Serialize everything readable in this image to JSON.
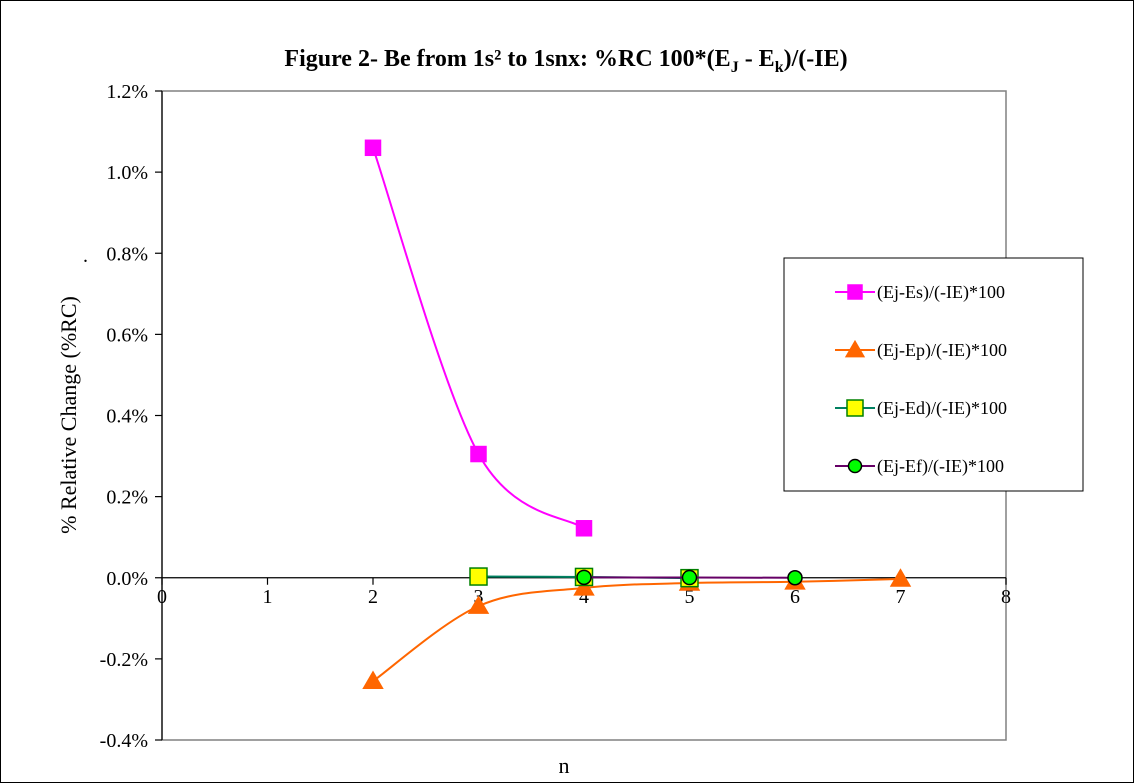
{
  "chart_data": {
    "type": "line",
    "title": "Figure 2- Be from 1s² to 1snx: %RC   100*(E",
    "title_sub_j": "J",
    "title_mid": " - E",
    "title_sub_k": "k",
    "title_end": ")/(-IE)",
    "xlabel": "n",
    "ylabel": "% Relative Change (%RC)",
    "ylabel_prefix": ".",
    "xlim": [
      0,
      8
    ],
    "ylim": [
      -0.004,
      0.012
    ],
    "x_ticks": [
      0,
      1,
      2,
      3,
      4,
      5,
      6,
      7,
      8
    ],
    "x_tick_labels": [
      "0",
      "1",
      "2",
      "3",
      "4",
      "5",
      "6",
      "7",
      "8"
    ],
    "y_ticks": [
      -0.004,
      -0.002,
      0,
      0.002,
      0.004,
      0.006,
      0.008,
      0.01,
      0.012
    ],
    "y_tick_labels": [
      "-0.4%",
      "-0.2%",
      "0.0%",
      "0.2%",
      "0.4%",
      "0.6%",
      "0.8%",
      "1.0%",
      "1.2%"
    ],
    "grid": false,
    "legend_position": "right",
    "series": [
      {
        "name": "(Ej-Es)/(-IE)*100",
        "x": [
          2,
          3,
          4
        ],
        "y": [
          0.0106,
          0.00305,
          0.00122
        ],
        "color": "#ff00ff",
        "marker": "square",
        "marker_fill": "#ff00ff",
        "marker_stroke": "#ff00ff",
        "smooth": true
      },
      {
        "name": "(Ej-Ep)/(-IE)*100",
        "x": [
          2,
          3,
          4,
          5,
          6,
          7
        ],
        "y": [
          -0.00255,
          -0.0007,
          -0.00025,
          -0.00013,
          -0.0001,
          -3e-05
        ],
        "color": "#ff6600",
        "marker": "triangle",
        "marker_fill": "#ff6600",
        "marker_stroke": "#ff6600",
        "smooth": true
      },
      {
        "name": "(Ej-Ed)/(-IE)*100",
        "x": [
          3,
          4,
          5
        ],
        "y": [
          3e-05,
          2e-05,
          -1e-05
        ],
        "color": "#008060",
        "marker": "square",
        "marker_fill": "#ffff00",
        "marker_stroke": "#008000",
        "smooth": true
      },
      {
        "name": "(Ej-Ef)/(-IE)*100",
        "x": [
          4,
          5,
          6
        ],
        "y": [
          1e-05,
          5e-06,
          0.0
        ],
        "color": "#660066",
        "marker": "circle",
        "marker_fill": "#00ff00",
        "marker_stroke": "#000000",
        "smooth": true
      }
    ]
  }
}
